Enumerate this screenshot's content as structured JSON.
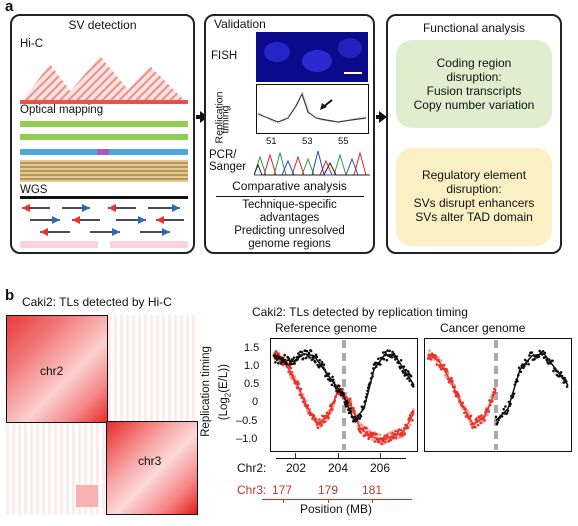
{
  "panel_a": {
    "letter": "a",
    "sv_detection": {
      "title": "SV detection",
      "hic_label": "Hi-C",
      "optical_label": "Optical mapping",
      "wgs_label": "WGS"
    },
    "validation": {
      "title": "Validation",
      "fish_label": "FISH",
      "rt_ylabel_line1": "Replication",
      "rt_ylabel_line2": "timing",
      "rt_ticks": [
        "51",
        "53",
        "55"
      ],
      "pcr_label_line1": "PCR/",
      "pcr_label_line2": "Sanger",
      "comparative_title": "Comparative analysis",
      "comparative_items": [
        "Technique-specific",
        "advantages",
        "Predicting unresolved",
        "genome regions"
      ]
    },
    "functional": {
      "title": "Functional analysis",
      "coding_lines": [
        "Coding region",
        "disruption:",
        "Fusion transcripts",
        "Copy number variation"
      ],
      "regulatory_lines": [
        "Regulatory element",
        "disruption:",
        "SVs disrupt enhancers",
        "SVs alter TAD domain"
      ],
      "colors": {
        "coding_bg": "#dfeecf",
        "regulatory_bg": "#fbf0c4"
      }
    }
  },
  "panel_b": {
    "letter": "b",
    "hic_title": "Caki2: TLs detected by Hi-C",
    "hic_labels": [
      "chr2",
      "chr3"
    ],
    "rt_title": "Caki2: TLs detected by replication timing",
    "sub_titles": [
      "Reference genome",
      "Cancer genome"
    ],
    "y_axis_label_line1": "Replication timing",
    "y_axis_label_line2": "(Log",
    "y_axis_label_sub": "2",
    "y_axis_label_line3": "(E/L))",
    "y_ticks": [
      "1.5",
      "1.0",
      "0.5",
      "0",
      "–0.5",
      "–1.0"
    ],
    "chr2_label": "Chr2:",
    "chr2_ticks": [
      "202",
      "204",
      "206"
    ],
    "chr3_label": "Chr3:",
    "chr3_ticks": [
      "177",
      "179",
      "181"
    ],
    "x_axis_label": "Position (MB)",
    "colors": {
      "chr2": "#111111",
      "chr3": "#e8332a",
      "chr3_fill": "#f59b8e",
      "hic": "#e31a1c"
    }
  },
  "chart_data": {
    "type": "scatter",
    "title": "Caki2: TLs detected by replication timing",
    "ylabel": "Replication timing (Log2(E/L))",
    "xlabel": "Position (MB)",
    "ylim": [
      -1.1,
      1.6
    ],
    "series": [
      {
        "name": "Chr2",
        "x": [
          201.2,
          201.6,
          202.0,
          202.4,
          202.8,
          203.2,
          203.6,
          204.0,
          204.4,
          204.8,
          205.2,
          205.6,
          206.0,
          206.4,
          206.8
        ],
        "values": [
          1.2,
          1.15,
          1.1,
          1.3,
          1.25,
          0.9,
          0.55,
          0.2,
          -0.4,
          -0.1,
          0.9,
          1.25,
          1.3,
          0.9,
          0.5
        ]
      },
      {
        "name": "Chr3",
        "x": [
          176.8,
          177.2,
          177.6,
          178.0,
          178.4,
          178.8,
          179.2,
          179.6,
          180.0,
          180.4,
          180.8,
          181.2,
          181.6,
          182.0
        ],
        "values": [
          1.3,
          1.1,
          0.6,
          0.0,
          -0.5,
          -0.3,
          0.4,
          0.1,
          -0.6,
          -0.8,
          -0.9,
          -0.8,
          -0.7,
          -0.2
        ]
      }
    ]
  }
}
